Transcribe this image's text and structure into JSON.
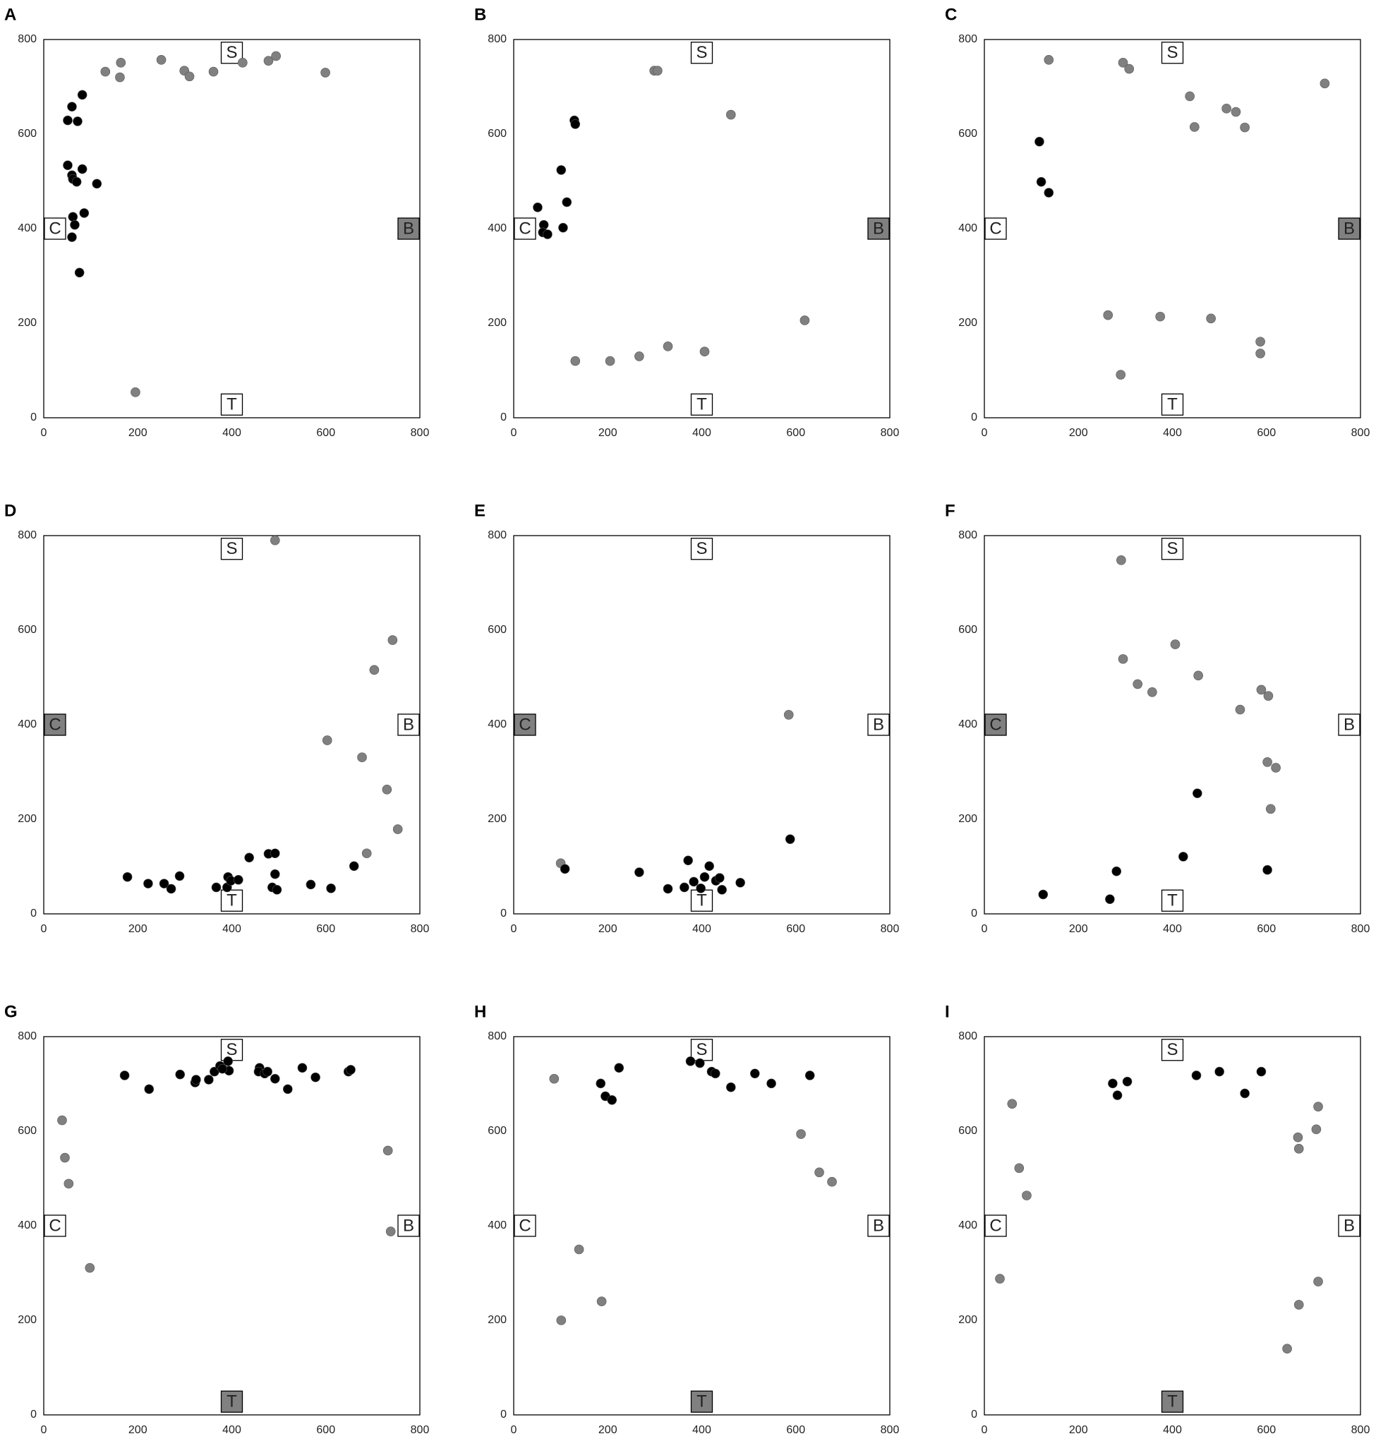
{
  "chart_data": [
    {
      "type": "scatter",
      "title": "A",
      "xlim": [
        0,
        800
      ],
      "ylim": [
        0,
        800
      ],
      "xticks": [
        0,
        200,
        400,
        600,
        800
      ],
      "yticks": [
        0,
        200,
        400,
        600,
        800
      ],
      "anchors": [
        "S",
        "T",
        "C",
        "B"
      ],
      "shaded_anchor": 3,
      "series": [
        {
          "color": "#808080",
          "x": [
            131,
            164,
            162,
            250,
            299,
            310,
            361,
            423,
            478,
            494,
            599,
            195
          ],
          "values": [
            732,
            751,
            720,
            757,
            734,
            722,
            732,
            751,
            755,
            765,
            730,
            54
          ]
        },
        {
          "color": "#000000",
          "x": [
            82,
            60,
            51,
            72,
            51,
            82,
            60,
            62,
            70,
            113,
            62,
            86,
            66,
            60,
            76
          ],
          "values": [
            683,
            658,
            629,
            627,
            534,
            526,
            513,
            505,
            499,
            495,
            425,
            433,
            408,
            382,
            307
          ]
        }
      ]
    },
    {
      "type": "scatter",
      "title": "B",
      "xlim": [
        0,
        800
      ],
      "ylim": [
        0,
        800
      ],
      "xticks": [
        0,
        200,
        400,
        600,
        800
      ],
      "yticks": [
        0,
        200,
        400,
        600,
        800
      ],
      "anchors": [
        "S",
        "T",
        "C",
        "B"
      ],
      "shaded_anchor": 3,
      "series": [
        {
          "color": "#808080",
          "x": [
            299,
            306,
            462,
            619,
            131,
            205,
            267,
            328,
            406
          ],
          "values": [
            734,
            734,
            641,
            206,
            120,
            120,
            130,
            151,
            140
          ]
        },
        {
          "color": "#000000",
          "x": [
            129,
            131,
            101,
            113,
            51,
            105,
            64,
            62,
            72
          ],
          "values": [
            629,
            621,
            524,
            456,
            445,
            402,
            408,
            392,
            388
          ]
        }
      ]
    },
    {
      "type": "scatter",
      "title": "C",
      "xlim": [
        0,
        800
      ],
      "ylim": [
        0,
        800
      ],
      "xticks": [
        0,
        200,
        400,
        600,
        800
      ],
      "yticks": [
        0,
        200,
        400,
        600,
        800
      ],
      "anchors": [
        "S",
        "T",
        "C",
        "B"
      ],
      "shaded_anchor": 3,
      "series": [
        {
          "color": "#808080",
          "x": [
            137,
            295,
            308,
            437,
            447,
            515,
            535,
            554,
            724,
            263,
            374,
            482,
            587,
            587,
            290
          ],
          "values": [
            757,
            751,
            738,
            680,
            615,
            654,
            647,
            614,
            707,
            217,
            214,
            210,
            161,
            136,
            91
          ]
        },
        {
          "color": "#000000",
          "x": [
            117,
            121,
            137
          ],
          "values": [
            584,
            499,
            476
          ]
        }
      ]
    },
    {
      "type": "scatter",
      "title": "D",
      "xlim": [
        0,
        800
      ],
      "ylim": [
        0,
        800
      ],
      "xticks": [
        0,
        200,
        400,
        600,
        800
      ],
      "yticks": [
        0,
        200,
        400,
        600,
        800
      ],
      "anchors": [
        "S",
        "T",
        "C",
        "B"
      ],
      "shaded_anchor": 2,
      "series": [
        {
          "color": "#808080",
          "x": [
            492,
            742,
            703,
            603,
            677,
            730,
            753,
            687
          ],
          "values": [
            790,
            579,
            516,
            367,
            331,
            263,
            179,
            128
          ]
        },
        {
          "color": "#000000",
          "x": [
            178,
            222,
            256,
            271,
            289,
            367,
            392,
            390,
            398,
            414,
            437,
            478,
            492,
            492,
            486,
            496,
            568,
            611,
            660
          ],
          "values": [
            78,
            64,
            64,
            53,
            80,
            56,
            78,
            56,
            70,
            72,
            119,
            127,
            128,
            84,
            56,
            51,
            62,
            54,
            101
          ]
        }
      ]
    },
    {
      "type": "scatter",
      "title": "E",
      "xlim": [
        0,
        800
      ],
      "ylim": [
        0,
        800
      ],
      "xticks": [
        0,
        200,
        400,
        600,
        800
      ],
      "yticks": [
        0,
        200,
        400,
        600,
        800
      ],
      "anchors": [
        "S",
        "T",
        "C",
        "B"
      ],
      "shaded_anchor": 2,
      "series": [
        {
          "color": "#808080",
          "x": [
            100,
            585
          ],
          "values": [
            107,
            421
          ]
        },
        {
          "color": "#000000",
          "x": [
            109,
            267,
            328,
            371,
            363,
            383,
            398,
            406,
            416,
            430,
            438,
            443,
            482,
            588
          ],
          "values": [
            95,
            88,
            53,
            113,
            56,
            68,
            54,
            78,
            101,
            70,
            76,
            51,
            66,
            158
          ]
        }
      ]
    },
    {
      "type": "scatter",
      "title": "F",
      "xlim": [
        0,
        800
      ],
      "ylim": [
        0,
        800
      ],
      "xticks": [
        0,
        200,
        400,
        600,
        800
      ],
      "yticks": [
        0,
        200,
        400,
        600,
        800
      ],
      "anchors": [
        "S",
        "T",
        "C",
        "B"
      ],
      "shaded_anchor": 2,
      "series": [
        {
          "color": "#808080",
          "x": [
            291,
            295,
            326,
            357,
            406,
            455,
            544,
            589,
            604,
            602,
            620,
            609
          ],
          "values": [
            748,
            539,
            486,
            469,
            570,
            504,
            432,
            474,
            461,
            321,
            309,
            222
          ]
        },
        {
          "color": "#000000",
          "x": [
            125,
            267,
            281,
            453,
            423,
            602
          ],
          "values": [
            41,
            31,
            90,
            255,
            121,
            93
          ]
        }
      ]
    },
    {
      "type": "scatter",
      "title": "G",
      "xlim": [
        0,
        800
      ],
      "ylim": [
        0,
        800
      ],
      "xticks": [
        0,
        200,
        400,
        600,
        800
      ],
      "yticks": [
        0,
        200,
        400,
        600,
        800
      ],
      "anchors": [
        "S",
        "T",
        "C",
        "B"
      ],
      "shaded_anchor": 1,
      "series": [
        {
          "color": "#808080",
          "x": [
            39,
            45,
            53,
            98,
            732,
            738
          ],
          "values": [
            623,
            544,
            489,
            311,
            559,
            388
          ]
        },
        {
          "color": "#000000",
          "x": [
            172,
            224,
            290,
            322,
            324,
            351,
            363,
            375,
            392,
            394,
            380,
            459,
            457,
            470,
            476,
            492,
            519,
            550,
            578,
            648,
            653
          ],
          "values": [
            718,
            689,
            720,
            703,
            709,
            709,
            726,
            738,
            748,
            728,
            732,
            734,
            726,
            722,
            726,
            711,
            689,
            734,
            714,
            726,
            730
          ]
        }
      ]
    },
    {
      "type": "scatter",
      "title": "H",
      "xlim": [
        0,
        800
      ],
      "ylim": [
        0,
        800
      ],
      "xticks": [
        0,
        200,
        400,
        600,
        800
      ],
      "yticks": [
        0,
        200,
        400,
        600,
        800
      ],
      "anchors": [
        "S",
        "T",
        "C",
        "B"
      ],
      "shaded_anchor": 1,
      "series": [
        {
          "color": "#808080",
          "x": [
            86,
            611,
            650,
            677,
            139,
            187,
            101
          ],
          "values": [
            711,
            594,
            513,
            493,
            350,
            240,
            200
          ]
        },
        {
          "color": "#000000",
          "x": [
            185,
            195,
            209,
            224,
            376,
            396,
            421,
            429,
            462,
            513,
            548,
            630
          ],
          "values": [
            701,
            674,
            666,
            734,
            748,
            744,
            726,
            722,
            693,
            722,
            701,
            718
          ]
        }
      ]
    },
    {
      "type": "scatter",
      "title": "I",
      "xlim": [
        0,
        800
      ],
      "ylim": [
        0,
        800
      ],
      "xticks": [
        0,
        200,
        400,
        600,
        800
      ],
      "yticks": [
        0,
        200,
        400,
        600,
        800
      ],
      "anchors": [
        "S",
        "T",
        "C",
        "B"
      ],
      "shaded_anchor": 1,
      "series": [
        {
          "color": "#808080",
          "x": [
            59,
            74,
            90,
            33,
            667,
            669,
            706,
            710,
            710,
            669,
            644
          ],
          "values": [
            658,
            522,
            464,
            288,
            587,
            563,
            604,
            652,
            282,
            233,
            140
          ]
        },
        {
          "color": "#000000",
          "x": [
            273,
            283,
            304,
            451,
            500,
            554,
            589
          ],
          "values": [
            701,
            676,
            705,
            718,
            726,
            680,
            726
          ]
        }
      ]
    }
  ]
}
